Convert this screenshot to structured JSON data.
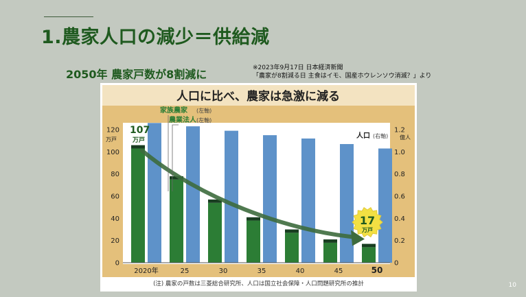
{
  "slide": {
    "title": "1.農家人口の減少＝供給減",
    "subtitle": "2050年 農家戸数が8割減に",
    "source_line1": "※2023年9月17日 日本経済新聞",
    "source_line2": "「農家が8割減る日 主食はイモ、国産ホウレンソウ消滅？」より",
    "page_number": "10"
  },
  "colors": {
    "title_green": "#1f5a1f",
    "chart_bg": "#e4c07b",
    "chart_title_bg": "#f3e3c1",
    "family_farm": "#2c7d35",
    "corporation": "#183d20",
    "population": "#5e92c9",
    "arrow": "#3d6b3d",
    "badge": "#f3e043"
  },
  "chart_data": {
    "type": "bar",
    "title": "人口に比べ、農家は急激に減る",
    "categories": [
      "2020年",
      "25",
      "30",
      "35",
      "40",
      "45",
      "50"
    ],
    "series": [
      {
        "name": "家族農家",
        "axis": "left",
        "values": [
          103,
          75,
          54,
          38,
          27,
          18,
          14
        ]
      },
      {
        "name": "農業法人",
        "axis": "left",
        "values": [
          3,
          3,
          3,
          3,
          3,
          3,
          3
        ]
      },
      {
        "name": "人口",
        "axis": "right",
        "values": [
          1.26,
          1.23,
          1.19,
          1.15,
          1.12,
          1.07,
          1.03
        ]
      }
    ],
    "stacked_series": [
      "家族農家",
      "農業法人"
    ],
    "legend": {
      "family": "家族農家",
      "corp": "農業法人",
      "population": "人口",
      "left_axis": "(左軸)",
      "right_axis": "(右軸)"
    },
    "y_left": {
      "unit": "万戸",
      "ticks": [
        "0",
        "20",
        "40",
        "60",
        "80",
        "100",
        "120"
      ],
      "lim": [
        0,
        120
      ]
    },
    "y_right": {
      "unit": "億人",
      "ticks": [
        "0",
        "0.2",
        "0.4",
        "0.6",
        "0.8",
        "1.0",
        "1.2"
      ],
      "lim": [
        0,
        1.2
      ]
    },
    "annotations": {
      "start_value": "107",
      "start_unit": "万戸",
      "end_value": "17",
      "end_unit": "万戸"
    },
    "note": "(注) 農家の戸数は三菱総合研究所、人口は国立社会保障・人口問題研究所の推計"
  }
}
